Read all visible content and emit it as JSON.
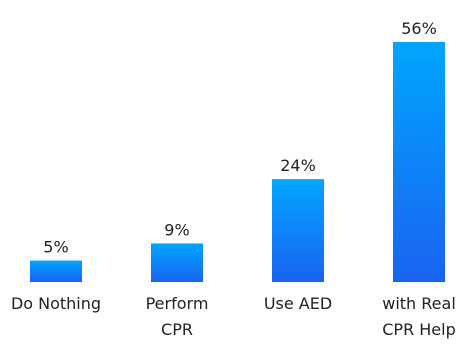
{
  "chart_data": {
    "type": "bar",
    "title": "",
    "xlabel": "",
    "ylabel": "",
    "ylim": [
      0,
      56
    ],
    "grid": false,
    "legend": "none",
    "categories": [
      [
        "Do Nothing"
      ],
      [
        "Perform",
        "CPR"
      ],
      [
        "Use AED"
      ],
      [
        "with Real",
        "CPR Help"
      ]
    ],
    "values": [
      5,
      9,
      24,
      56
    ],
    "value_labels": [
      "5%",
      "9%",
      "24%",
      "56%"
    ],
    "bar_gradient": {
      "top": "#00a6ff",
      "bottom": "#1a63f0"
    }
  }
}
